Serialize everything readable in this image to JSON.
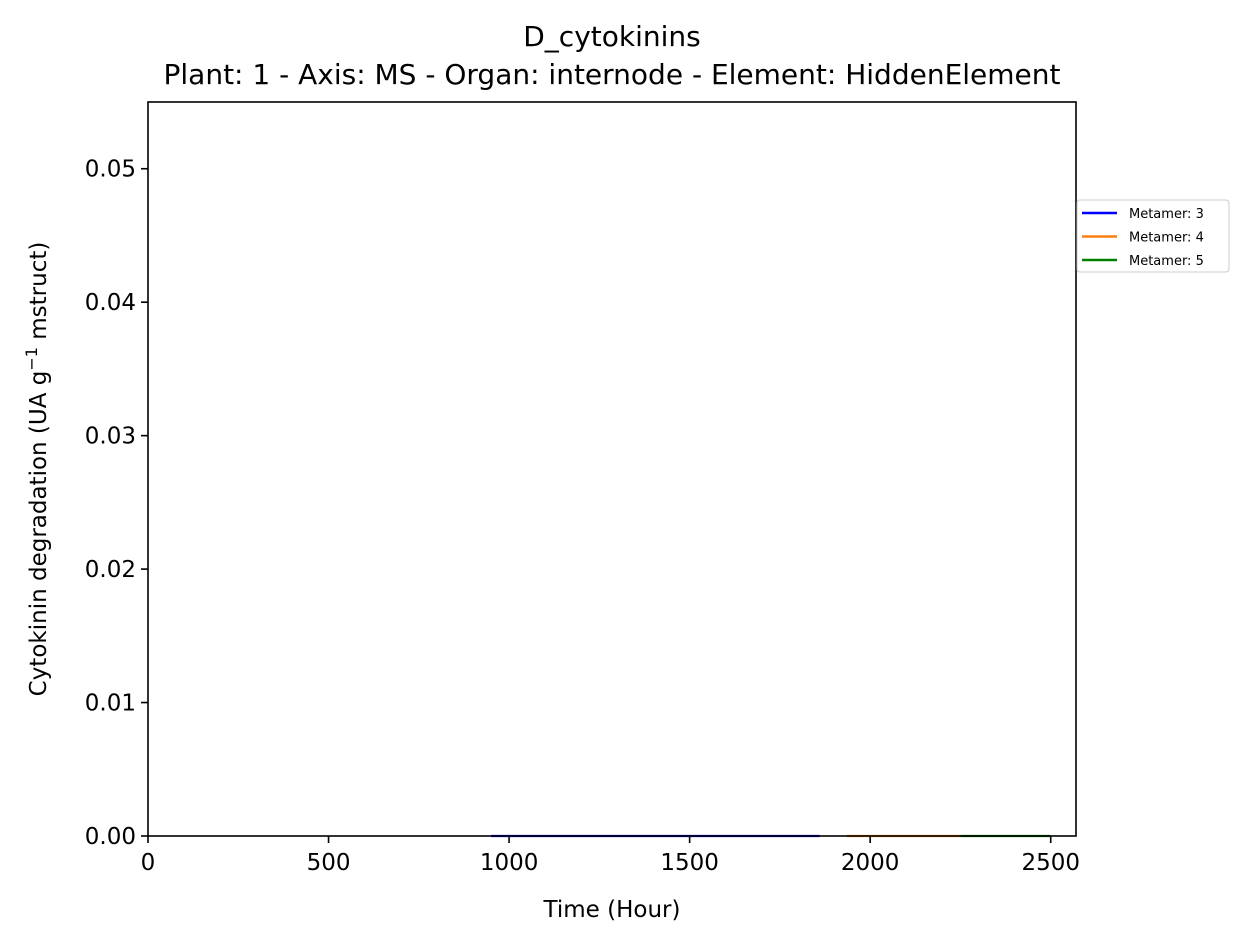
{
  "chart_data": {
    "type": "line",
    "title": "D_cytokinins",
    "subtitle": "Plant: 1 - Axis: MS - Organ: internode - Element: HiddenElement",
    "xlabel": "Time (Hour)",
    "ylabel_main": "Cytokinin degradation (UA g",
    "ylabel_sup": "−1",
    "ylabel_tail": " mstruct)",
    "xlim": [
      0,
      2570
    ],
    "ylim": [
      0,
      0.055
    ],
    "x_ticks": [
      0,
      500,
      1000,
      1500,
      2000,
      2500
    ],
    "x_tick_labels": [
      "0",
      "500",
      "1000",
      "1500",
      "2000",
      "2500"
    ],
    "y_ticks": [
      0.0,
      0.01,
      0.02,
      0.03,
      0.04,
      0.05
    ],
    "y_tick_labels": [
      "0.00",
      "0.01",
      "0.02",
      "0.03",
      "0.04",
      "0.05"
    ],
    "grid": false,
    "legend_placement": "outside right, upper",
    "series": [
      {
        "name": "Metamer: 3",
        "color": "#0000ff",
        "x": [
          950,
          1860
        ],
        "y": [
          0.0,
          0.0
        ]
      },
      {
        "name": "Metamer: 4",
        "color": "#ff7f0e",
        "x": [
          1935,
          2250
        ],
        "y": [
          0.0,
          0.0
        ]
      },
      {
        "name": "Metamer: 5",
        "color": "#008000",
        "x": [
          2250,
          2500
        ],
        "y": [
          0.0,
          0.0
        ]
      }
    ]
  }
}
